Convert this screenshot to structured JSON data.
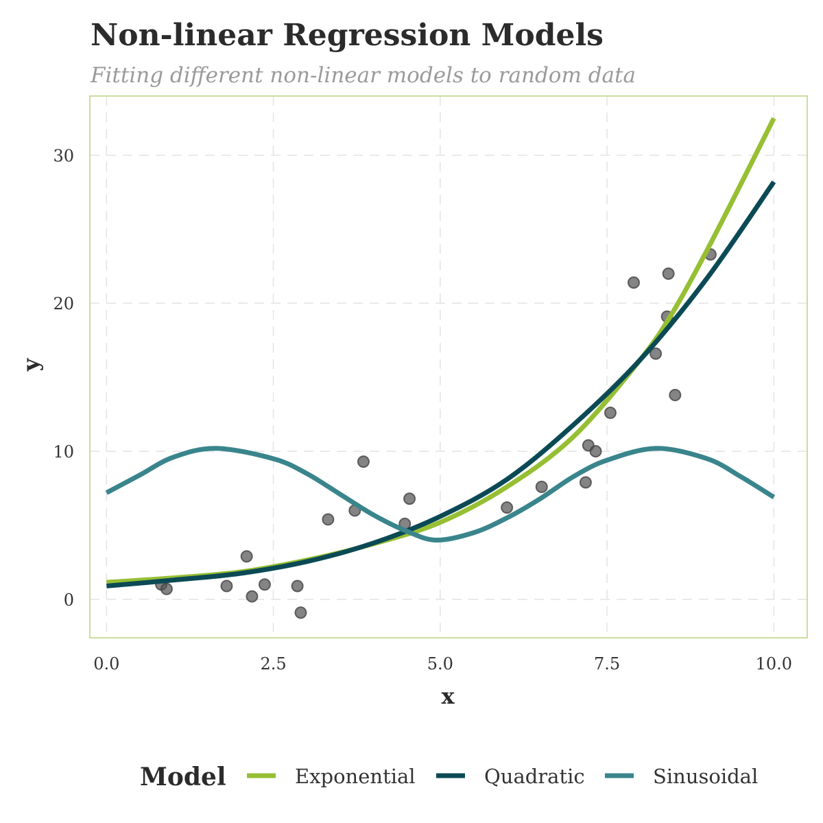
{
  "chart_data": {
    "type": "scatter",
    "title": "Non-linear Regression Models",
    "subtitle": "Fitting different non-linear models to random data",
    "xlabel": "x",
    "ylabel": "y",
    "xlim": [
      -0.25,
      10.5
    ],
    "ylim": [
      -2.6,
      34
    ],
    "x_ticks": [
      0.0,
      2.5,
      5.0,
      7.5,
      10.0
    ],
    "x_tick_labels": [
      "0.0",
      "2.5",
      "5.0",
      "7.5",
      "10.0"
    ],
    "y_ticks": [
      0,
      10,
      20,
      30
    ],
    "y_tick_labels": [
      "0",
      "10",
      "20",
      "30"
    ],
    "grid": true,
    "legend": {
      "title": "Model",
      "position": "bottom",
      "entries": [
        "Exponential",
        "Quadratic",
        "Sinusoidal"
      ]
    },
    "points": {
      "x": [
        0.82,
        0.9,
        1.8,
        2.1,
        2.18,
        2.37,
        2.86,
        2.91,
        3.32,
        3.72,
        3.85,
        4.47,
        4.54,
        6.0,
        6.52,
        7.18,
        7.22,
        7.33,
        7.55,
        7.9,
        8.23,
        8.4,
        8.42,
        8.52,
        9.05
      ],
      "y": [
        1.0,
        0.7,
        0.9,
        2.9,
        0.2,
        1.0,
        0.9,
        -0.9,
        5.4,
        6.0,
        9.3,
        5.1,
        6.8,
        6.2,
        7.6,
        7.9,
        10.4,
        10.0,
        12.6,
        21.4,
        16.6,
        19.1,
        22.0,
        13.8,
        23.3
      ],
      "color": "#555555"
    },
    "series": [
      {
        "name": "Exponential",
        "color": "#96bf33",
        "x": [
          0.0,
          1.0,
          2.0,
          3.0,
          4.0,
          5.0,
          6.0,
          7.0,
          8.0,
          8.5,
          9.0,
          9.5,
          10.0
        ],
        "y": [
          1.15,
          1.45,
          1.85,
          2.65,
          3.75,
          5.2,
          7.6,
          11.0,
          16.2,
          19.5,
          23.6,
          28.0,
          32.5
        ]
      },
      {
        "name": "Quadratic",
        "color": "#0b4a55",
        "x": [
          0.0,
          1.0,
          2.0,
          3.0,
          4.0,
          5.0,
          6.0,
          7.0,
          8.0,
          9.0,
          10.0
        ],
        "y": [
          0.9,
          1.3,
          1.75,
          2.55,
          3.8,
          5.6,
          8.1,
          11.8,
          16.2,
          21.7,
          28.2
        ]
      },
      {
        "name": "Sinusoidal",
        "color": "#3a858c",
        "x": [
          0.0,
          0.5,
          1.0,
          1.64,
          2.5,
          3.0,
          3.5,
          4.0,
          4.5,
          4.94,
          5.5,
          6.0,
          6.5,
          7.0,
          7.5,
          8.24,
          9.0,
          9.5,
          10.0
        ],
        "y": [
          7.2,
          8.4,
          9.6,
          10.2,
          9.5,
          8.5,
          7.1,
          5.7,
          4.6,
          4.0,
          4.5,
          5.5,
          6.8,
          8.3,
          9.4,
          10.2,
          9.5,
          8.3,
          6.9
        ]
      }
    ],
    "colors": {
      "panel_border": "#b8d47a",
      "grid": "#e3e3e3"
    }
  }
}
